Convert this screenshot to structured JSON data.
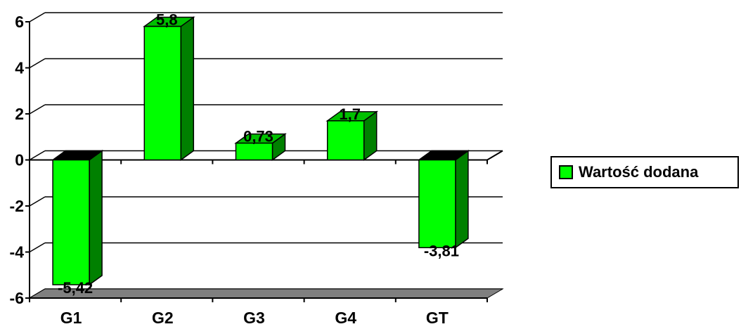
{
  "chart_data": {
    "type": "bar",
    "categories": [
      "G1",
      "G2",
      "G3",
      "G4",
      "GT"
    ],
    "series": [
      {
        "name": "Wartość dodana",
        "values": [
          -5.42,
          5.8,
          0.73,
          1.7,
          -3.81
        ]
      }
    ],
    "data_labels": [
      "-5,42",
      "5,8",
      "0,73",
      "1,7",
      "-3,81"
    ],
    "y_ticks": [
      6,
      4,
      2,
      0,
      -2,
      -4,
      -6
    ],
    "y_tick_labels": [
      "6",
      "4",
      "2",
      "0",
      "-2",
      "-4",
      "-6"
    ],
    "ylim": [
      -6,
      6
    ],
    "grid": true,
    "legend_position": "right",
    "style": "3d-column",
    "colors": {
      "bar_front": "#00ff00",
      "bar_side": "#008000",
      "bar_top": "#00c000",
      "floor": "#808080"
    }
  }
}
